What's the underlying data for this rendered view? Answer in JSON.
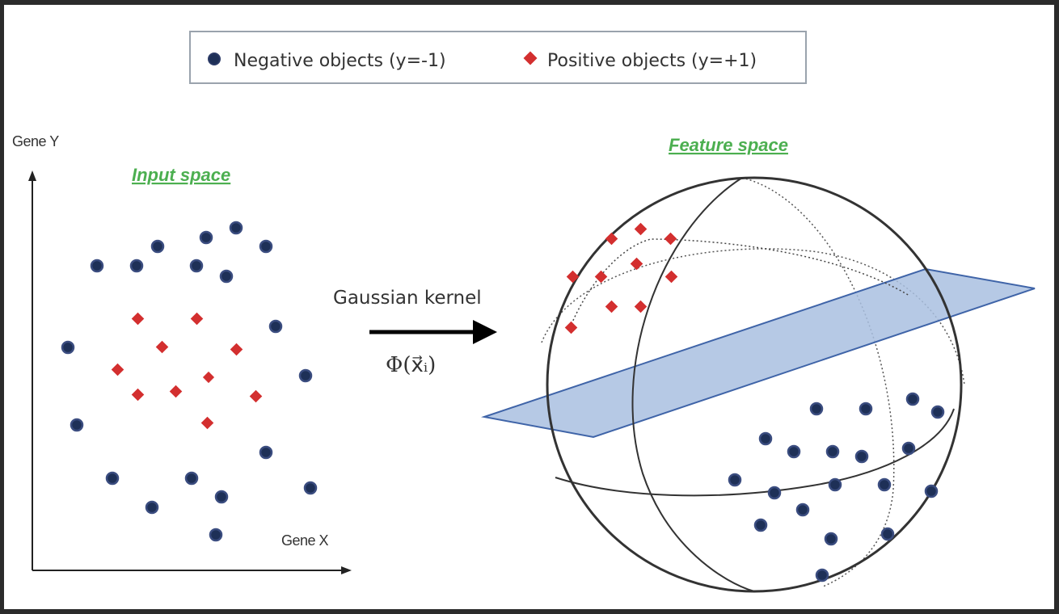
{
  "legend": {
    "negative_label": "Negative objects (y=-1)",
    "positive_label": "Positive objects (y=+1)",
    "negative_color": "#1e3057",
    "positive_color": "#d32f2f"
  },
  "input_space": {
    "title": "Input space",
    "y_axis_label": "Gene Y",
    "x_axis_label": "Gene X"
  },
  "mapping": {
    "kernel_label": "Gaussian kernel",
    "function_label": "Φ(x⃗ᵢ)"
  },
  "feature_space": {
    "title": "Feature space",
    "hyperplane_color": "#a9bfe0"
  }
}
